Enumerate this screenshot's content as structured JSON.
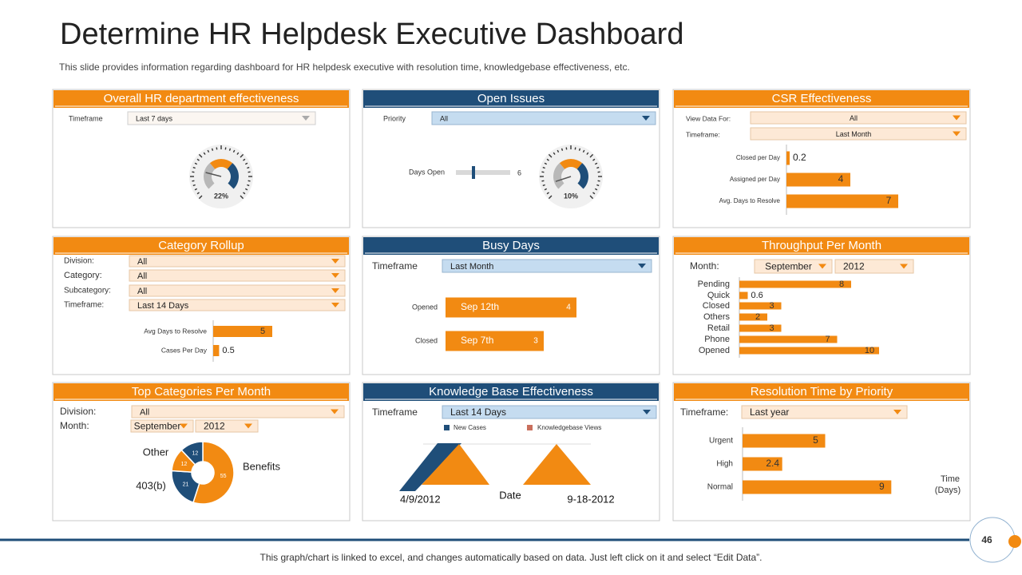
{
  "header": {
    "title": "Determine HR Helpdesk Executive Dashboard",
    "subtitle": "This slide provides information regarding dashboard for HR helpdesk executive with resolution time, knowledgebase effectiveness, etc."
  },
  "panels": {
    "overall": {
      "title": "Overall HR department effectiveness",
      "filters": [
        {
          "label": "Timeframe",
          "value": "Last 7 days"
        }
      ],
      "gauge": {
        "value": 22,
        "label": "22%"
      }
    },
    "open_issues": {
      "title": "Open Issues",
      "filters": [
        {
          "label": "Priority",
          "value": "All"
        }
      ],
      "days_open": {
        "label": "Days Open",
        "value": 6
      },
      "gauge": {
        "value": 10,
        "label": "10%"
      }
    },
    "csr": {
      "title": "CSR Effectiveness",
      "filters": [
        {
          "label": "View Data For:",
          "value": "All"
        },
        {
          "label": "Timeframe:",
          "value": "Last Month"
        }
      ],
      "categories": [
        "Closed per Day",
        "Assigned per Day",
        "Avg. Days to Resolve"
      ],
      "values": [
        0.2,
        4,
        7
      ]
    },
    "category_rollup": {
      "title": "Category Rollup",
      "filters": [
        {
          "label": "Division:",
          "value": "All"
        },
        {
          "label": "Category:",
          "value": "All"
        },
        {
          "label": "Subcategory:",
          "value": "All"
        },
        {
          "label": "Timeframe:",
          "value": "Last 14 Days"
        }
      ],
      "categories": [
        "Avg Days to Resolve",
        "Cases Per Day"
      ],
      "values": [
        5,
        0.5
      ]
    },
    "busy_days": {
      "title": "Busy Days",
      "filters": [
        {
          "label": "Timeframe",
          "value": "Last Month"
        }
      ],
      "categories": [
        "Opened",
        "Closed"
      ],
      "dates": [
        "Sep 12th",
        "Sep 7th"
      ],
      "values": [
        4,
        3
      ]
    },
    "throughput": {
      "title": "Throughput Per Month",
      "month_label": "Month:",
      "month": "September",
      "year": "2012",
      "categories": [
        "Pending",
        "Quick",
        "Closed",
        "Others",
        "Retail",
        "Phone",
        "Opened"
      ],
      "values": [
        8,
        0.6,
        3,
        2,
        3,
        7,
        10
      ]
    },
    "top_categories": {
      "title": "Top Categories Per Month",
      "filters": [
        {
          "label": "Division:",
          "value": "All"
        }
      ],
      "month_label": "Month:",
      "month": "September",
      "year": "2012",
      "categories": [
        "Benefits",
        "403(b)",
        "Other",
        null
      ],
      "values": [
        55,
        21,
        12,
        12
      ],
      "colors": [
        "#f28a12",
        "#1f4e79",
        "#f28a12",
        "#1f4e79"
      ]
    },
    "knowledge_base": {
      "title": "Knowledge Base Effectiveness",
      "filters": [
        {
          "label": "Timeframe",
          "value": "Last 14 Days"
        }
      ],
      "legend": [
        "New Cases",
        "Knowledgebase Views"
      ],
      "x_labels": [
        "4/9/2012",
        "9-18-2012"
      ],
      "x_axis_label": "Date"
    },
    "resolution": {
      "title": "Resolution Time by Priority",
      "filters": [
        {
          "label": "Timeframe:",
          "value": "Last year"
        }
      ],
      "categories": [
        "Urgent",
        "High",
        "Normal"
      ],
      "values": [
        5,
        2.4,
        9
      ],
      "axis_label": [
        "Time",
        "(Days)"
      ]
    }
  },
  "footer": {
    "note": "This graph/chart is linked to excel, and changes automatically based on data. Just left click on it and select “Edit Data”.",
    "page": "46"
  }
}
